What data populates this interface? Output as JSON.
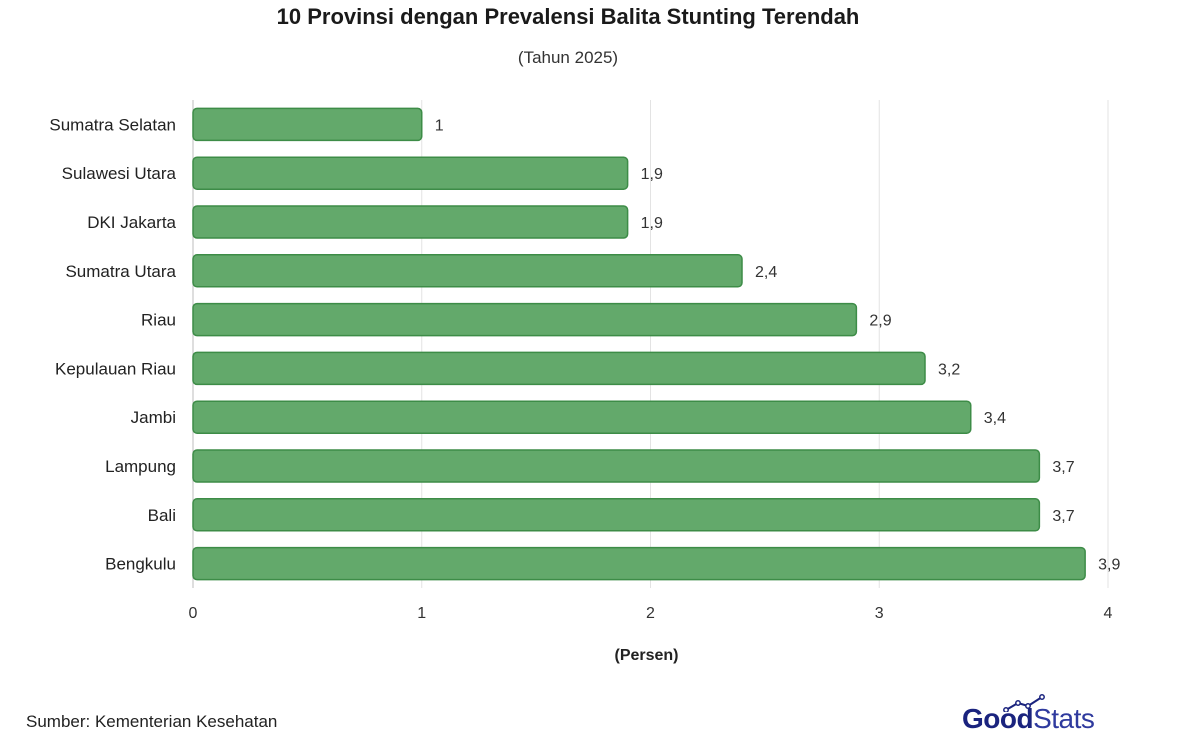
{
  "header": {
    "title": "10 Provinsi dengan Prevalensi Balita Stunting Terendah",
    "subtitle": "(Tahun 2025)"
  },
  "footer": {
    "source": "Sumber: Kementerian Kesehatan",
    "logo_good": "Good",
    "logo_stats": "Stats"
  },
  "colors": {
    "bar_fill": "#63a96b",
    "bar_stroke": "#3d8c47",
    "grid": "#e3e3e3",
    "logo": "#1a237e"
  },
  "chart_data": {
    "type": "bar",
    "orientation": "horizontal",
    "title": "10 Provinsi dengan Prevalensi Balita Stunting Terendah",
    "subtitle": "(Tahun 2025)",
    "xlabel": "(Persen)",
    "ylabel": "",
    "xlim": [
      0,
      4
    ],
    "xticks": [
      "0",
      "1",
      "2",
      "3",
      "4"
    ],
    "grid": true,
    "legend": "none",
    "categories": [
      "Sumatra Selatan",
      "Sulawesi Utara",
      "DKI Jakarta",
      "Sumatra Utara",
      "Riau",
      "Kepulauan Riau",
      "Jambi",
      "Lampung",
      "Bali",
      "Bengkulu"
    ],
    "values": [
      1,
      1.9,
      1.9,
      2.4,
      2.9,
      3.2,
      3.4,
      3.7,
      3.7,
      3.9
    ],
    "value_labels": [
      "1",
      "1,9",
      "1,9",
      "2,4",
      "2,9",
      "3,2",
      "3,4",
      "3,7",
      "3,7",
      "3,9"
    ]
  }
}
